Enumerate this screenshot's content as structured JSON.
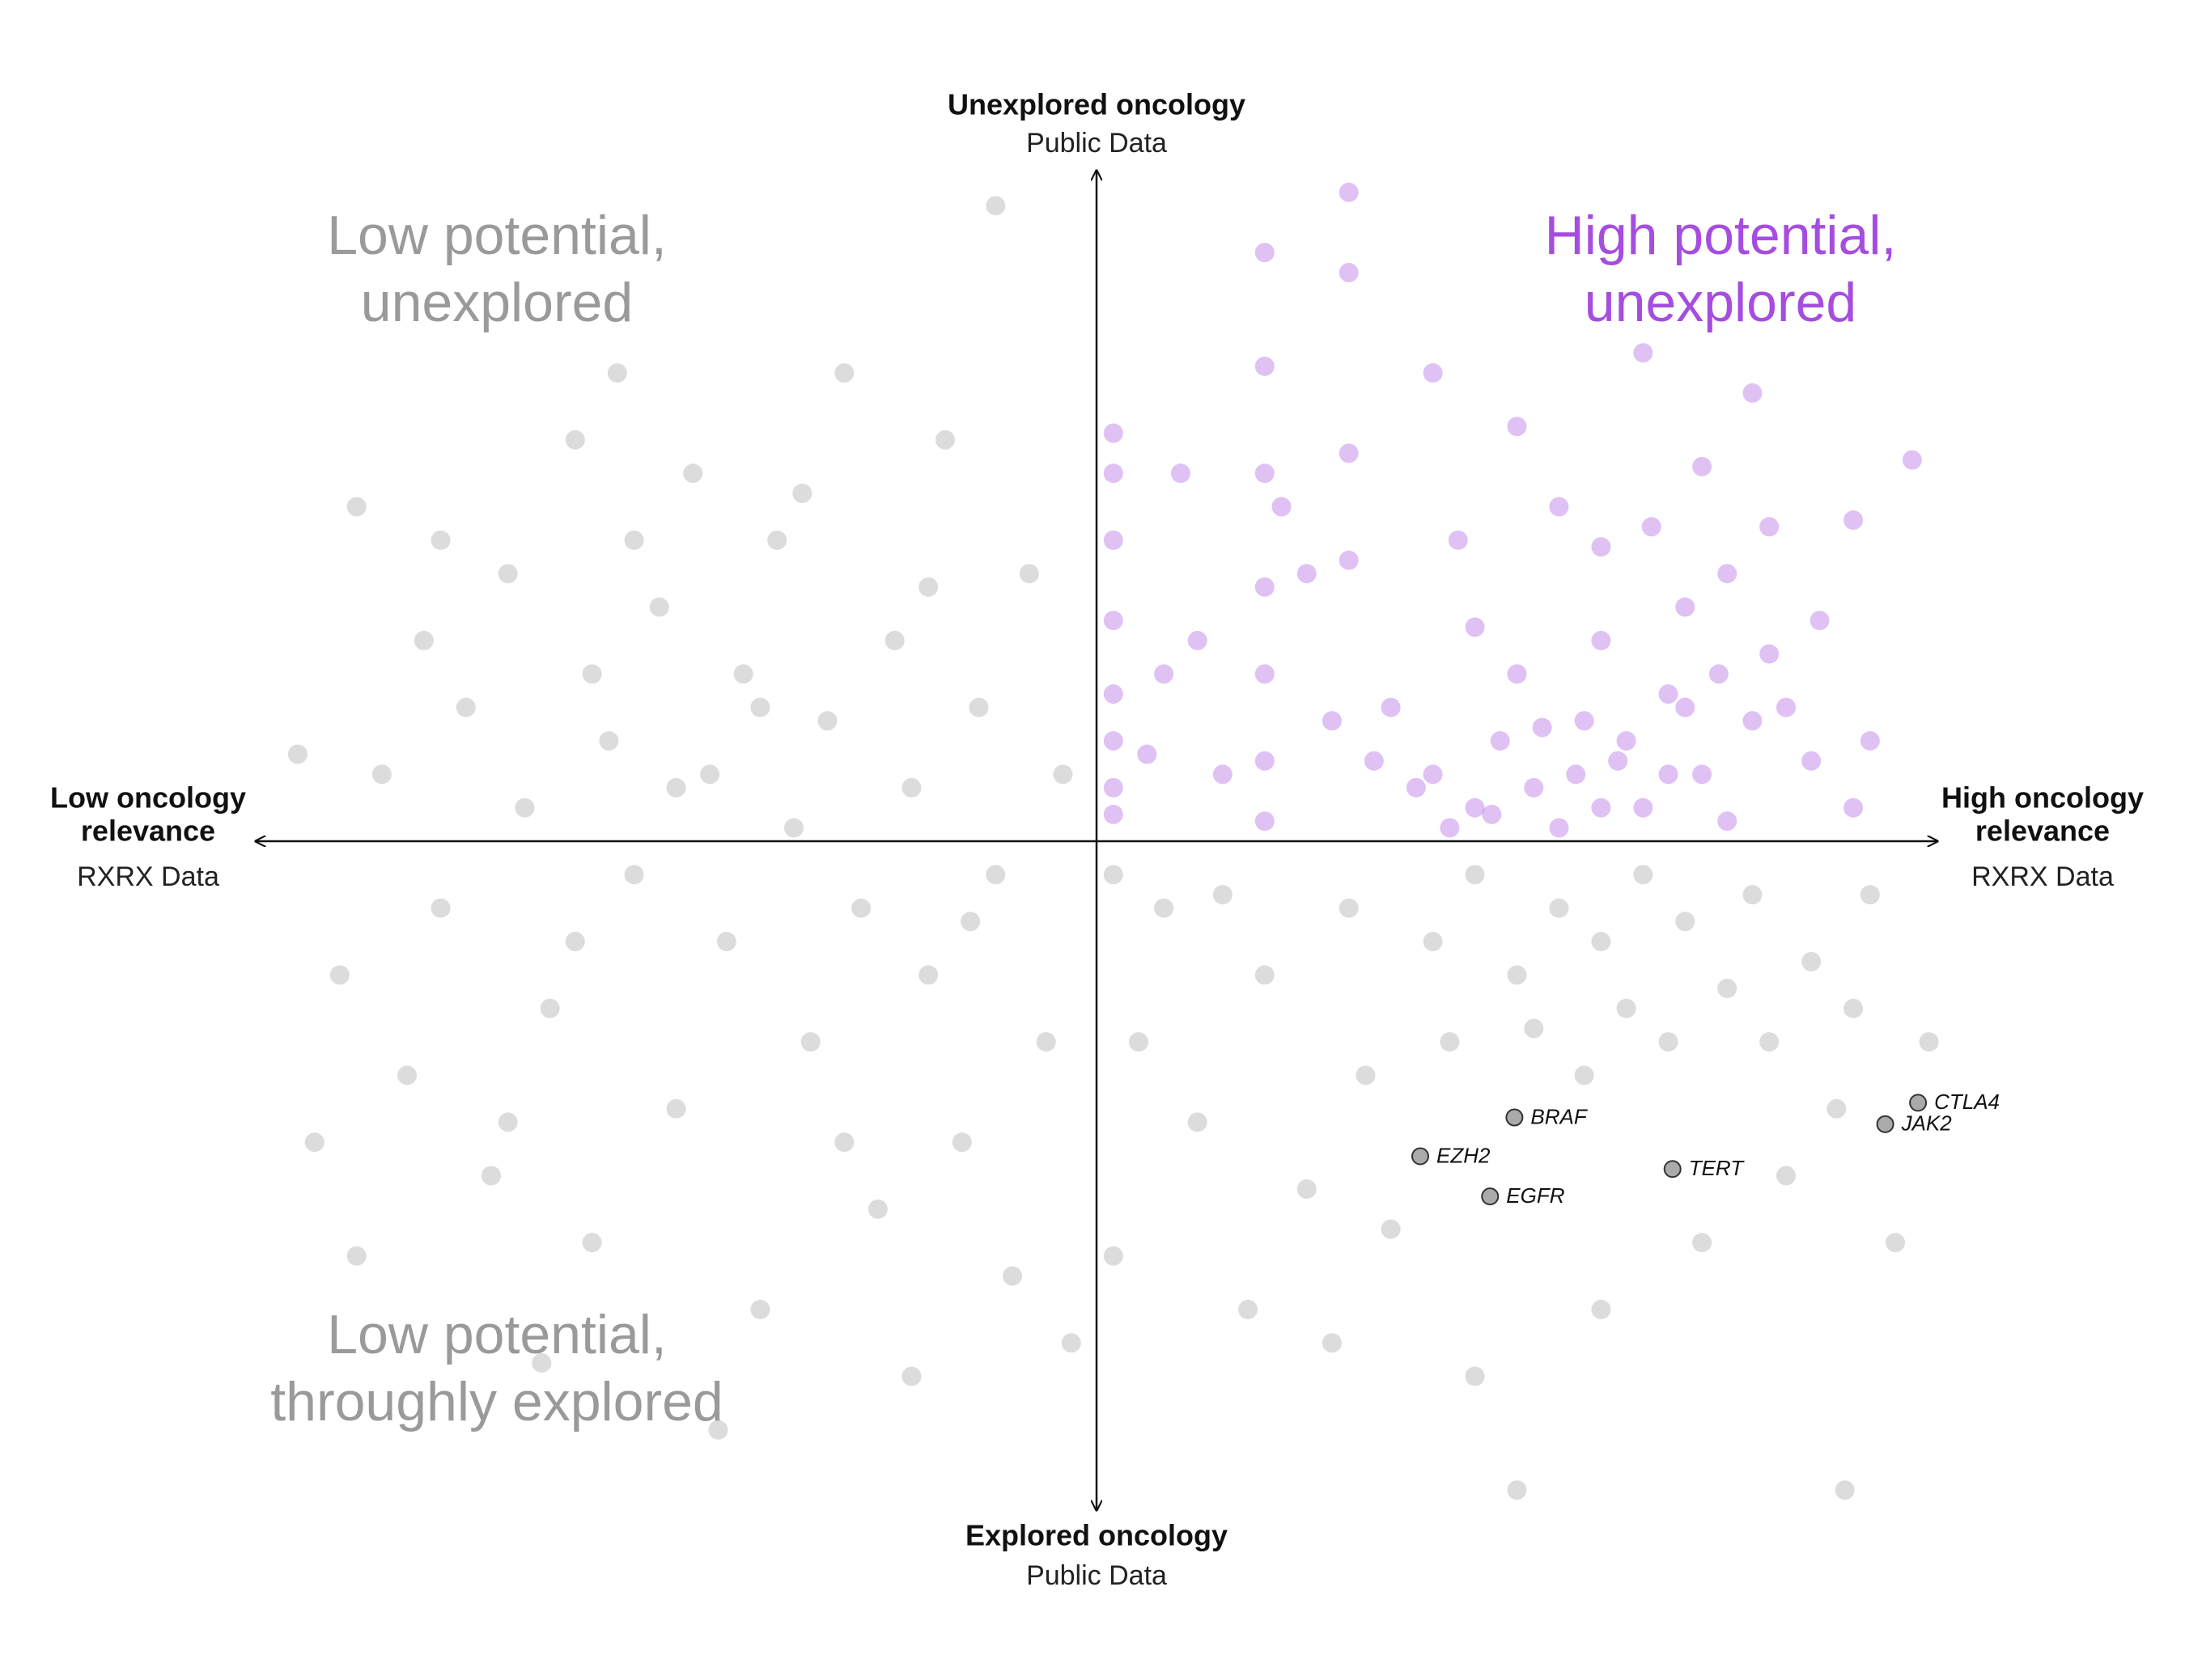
{
  "chart_data": {
    "type": "scatter",
    "xlim": [
      -1,
      1
    ],
    "ylim": [
      -1,
      1
    ],
    "x_axis": {
      "left_lines": [
        "Low oncology",
        "relevance"
      ],
      "left_sub": "RXRX Data",
      "right_lines": [
        "High oncology",
        "relevance"
      ],
      "right_sub": "RXRX Data"
    },
    "y_axis": {
      "top": "Unexplored oncology",
      "top_sub": "Public Data",
      "bottom": "Explored oncology",
      "bottom_sub": "Public Data"
    },
    "quadrants": [
      {
        "lines": [
          "Low potential,",
          "unexplored"
        ],
        "color": "#9a9a9a",
        "corner": "top-left"
      },
      {
        "lines": [
          "High potential,",
          "unexplored"
        ],
        "color": "#a64de0",
        "corner": "top-right"
      },
      {
        "lines": [
          "Low potential,",
          "throughly explored"
        ],
        "color": "#9a9a9a",
        "corner": "bottom-left"
      }
    ],
    "series": [
      {
        "color": "#9a9a9a",
        "alpha": 0.35,
        "x": [
          -0.95,
          -0.9,
          -0.88,
          -0.85,
          -0.82,
          -0.8,
          -0.78,
          -0.75,
          -0.72,
          -0.7,
          -0.68,
          -0.65,
          -0.62,
          -0.6,
          -0.58,
          -0.55,
          -0.52,
          -0.5,
          -0.48,
          -0.46,
          -0.44,
          -0.42,
          -0.4,
          -0.38,
          -0.36,
          -0.34,
          -0.32,
          -0.3,
          -0.28,
          -0.26,
          -0.24,
          -0.22,
          -0.2,
          -0.18,
          -0.16,
          -0.14,
          -0.12,
          -0.1,
          -0.08,
          -0.06,
          -0.04,
          -0.03,
          -0.12,
          -0.57,
          -0.66,
          -0.45,
          -0.22,
          -0.88,
          -0.93,
          -0.7,
          -0.55,
          -0.35,
          -0.2,
          -0.62,
          -0.5,
          -0.4,
          -0.3,
          -0.15,
          -0.78,
          -0.6,
          0.02,
          0.05,
          0.02,
          0.08,
          0.12,
          0.15,
          0.18,
          0.2,
          0.25,
          0.3,
          0.32,
          0.35,
          0.4,
          0.42,
          0.45,
          0.5,
          0.52,
          0.55,
          0.58,
          0.6,
          0.63,
          0.65,
          0.68,
          0.7,
          0.72,
          0.75,
          0.78,
          0.8,
          0.82,
          0.85,
          0.88,
          0.9,
          0.92,
          0.95,
          0.99,
          0.5,
          0.89,
          0.6,
          0.28,
          0.45
        ],
        "y": [
          0.13,
          -0.2,
          0.5,
          0.1,
          -0.35,
          0.3,
          -0.1,
          0.2,
          -0.5,
          0.4,
          0.05,
          -0.25,
          0.6,
          -0.6,
          0.15,
          -0.05,
          0.35,
          -0.4,
          0.55,
          0.1,
          -0.15,
          0.25,
          -0.7,
          0.45,
          0.02,
          -0.3,
          0.18,
          0.7,
          -0.1,
          -0.55,
          0.3,
          0.08,
          -0.2,
          0.6,
          -0.45,
          0.2,
          -0.05,
          -0.65,
          0.4,
          -0.3,
          0.1,
          -0.75,
          0.95,
          0.7,
          -0.78,
          -0.88,
          -0.8,
          -0.62,
          -0.45,
          -0.42,
          0.45,
          0.52,
          0.38,
          -0.15,
          0.08,
          0.2,
          -0.45,
          -0.12,
          0.45,
          0.25,
          -0.05,
          -0.3,
          -0.62,
          -0.1,
          -0.42,
          -0.08,
          -0.7,
          -0.2,
          -0.52,
          -0.1,
          -0.35,
          -0.58,
          -0.15,
          -0.3,
          -0.05,
          -0.2,
          -0.28,
          -0.1,
          -0.35,
          -0.15,
          -0.25,
          -0.05,
          -0.3,
          -0.12,
          -0.6,
          -0.22,
          -0.08,
          -0.3,
          -0.5,
          -0.18,
          -0.4,
          -0.25,
          -0.08,
          -0.6,
          -0.3,
          -0.97,
          -0.97,
          -0.7,
          -0.75,
          -0.8
        ]
      },
      {
        "color": "#a64de0",
        "alpha": 0.35,
        "x": [
          0.02,
          0.02,
          0.02,
          0.02,
          0.02,
          0.02,
          0.02,
          0.02,
          0.2,
          0.2,
          0.2,
          0.2,
          0.2,
          0.2,
          0.2,
          0.3,
          0.3,
          0.3,
          0.3,
          0.1,
          0.08,
          0.15,
          0.25,
          0.35,
          0.4,
          0.45,
          0.48,
          0.5,
          0.52,
          0.55,
          0.58,
          0.6,
          0.62,
          0.65,
          0.68,
          0.7,
          0.72,
          0.75,
          0.78,
          0.8,
          0.8,
          0.85,
          0.9,
          0.92,
          0.97,
          0.9,
          0.78,
          0.65,
          0.55,
          0.45,
          0.43,
          0.4,
          0.5,
          0.6,
          0.66,
          0.72,
          0.75,
          0.7,
          0.63,
          0.57,
          0.53,
          0.47,
          0.42,
          0.38,
          0.33,
          0.28,
          0.22,
          0.12,
          0.06,
          0.86,
          0.82,
          0.74,
          0.68,
          0.6
        ],
        "y": [
          0.61,
          0.55,
          0.45,
          0.33,
          0.22,
          0.15,
          0.08,
          0.04,
          0.88,
          0.71,
          0.55,
          0.38,
          0.25,
          0.12,
          0.03,
          0.97,
          0.85,
          0.58,
          0.42,
          0.55,
          0.25,
          0.1,
          0.4,
          0.2,
          0.1,
          0.05,
          0.15,
          0.25,
          0.08,
          0.02,
          0.18,
          0.3,
          0.12,
          0.05,
          0.22,
          0.35,
          0.1,
          0.03,
          0.18,
          0.28,
          0.47,
          0.12,
          0.05,
          0.15,
          0.57,
          0.48,
          0.67,
          0.73,
          0.5,
          0.32,
          0.45,
          0.7,
          0.62,
          0.44,
          0.47,
          0.56,
          0.4,
          0.2,
          0.15,
          0.1,
          0.17,
          0.04,
          0.02,
          0.08,
          0.12,
          0.18,
          0.5,
          0.3,
          0.13,
          0.33,
          0.2,
          0.25,
          0.1,
          0.05
        ]
      },
      {
        "color": "#aaaaaa",
        "alpha": 1,
        "labels": [
          "BRAF",
          "EZH2",
          "EGFR",
          "TERT",
          "CTLA4",
          "JAK2"
        ],
        "x": [
          0.497,
          0.385,
          0.468,
          0.685,
          0.977,
          0.938
        ],
        "y": [
          -0.413,
          -0.471,
          -0.531,
          -0.49,
          -0.391,
          -0.423
        ]
      }
    ]
  }
}
